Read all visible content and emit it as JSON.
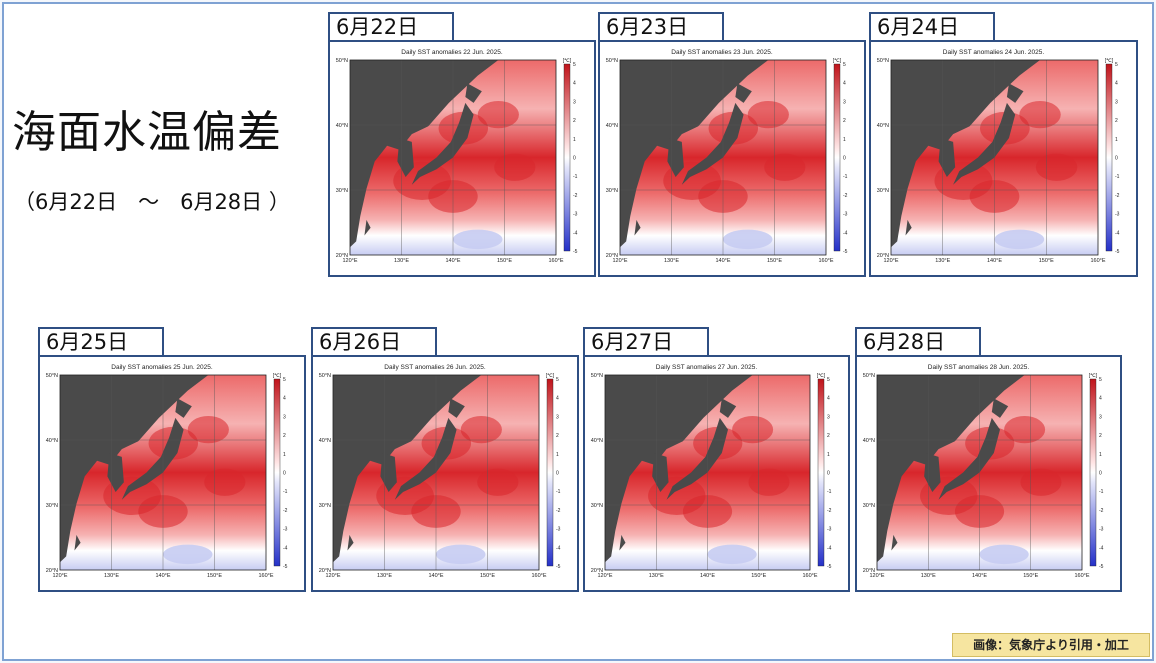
{
  "title": "海面水温偏差",
  "range": "（6月22日　～　6月28日 ）",
  "credit": "画像：気象庁より引用・加工",
  "colorbar_unit": "[℃]",
  "colorbar_ticks": [
    "5",
    "4",
    "3",
    "2",
    "1",
    "0",
    "-1",
    "-2",
    "-3",
    "-4",
    "-5"
  ],
  "lat_labels": [
    "50°N",
    "40°N",
    "30°N",
    "20°N"
  ],
  "lon_labels": [
    "120°E",
    "130°E",
    "140°E",
    "150°E",
    "160°E"
  ],
  "maps": [
    {
      "date_label": "6月22日",
      "caption": "Daily SST anomalies 22 Jun. 2025."
    },
    {
      "date_label": "6月23日",
      "caption": "Daily SST anomalies 23 Jun. 2025."
    },
    {
      "date_label": "6月24日",
      "caption": "Daily SST anomalies 24 Jun. 2025."
    },
    {
      "date_label": "6月25日",
      "caption": "Daily SST anomalies 25 Jun. 2025."
    },
    {
      "date_label": "6月26日",
      "caption": "Daily SST anomalies 26 Jun. 2025."
    },
    {
      "date_label": "6月27日",
      "caption": "Daily SST anomalies 27 Jun. 2025."
    },
    {
      "date_label": "6月28日",
      "caption": "Daily SST anomalies 28 Jun. 2025."
    }
  ],
  "colors": {
    "land": "#4a4a4a",
    "warm_strong": "#d8262b",
    "warm_mid": "#ec6a6a",
    "warm_light": "#f6b2b2",
    "neutral": "#ffffff",
    "cool_light": "#c7ccf2",
    "cool_strong": "#2430c8",
    "card_border": "#2f4f83"
  }
}
